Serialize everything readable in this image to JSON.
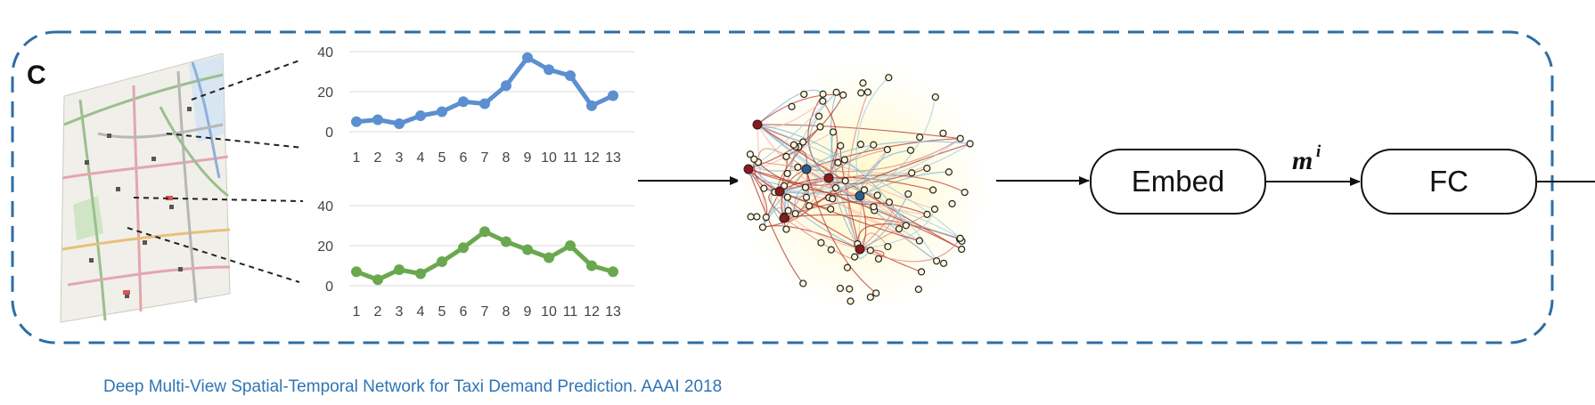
{
  "panel_label": "C",
  "boxes": {
    "embed": "Embed",
    "fc": "FC"
  },
  "edge_label": {
    "base": "m",
    "sup": "i"
  },
  "caption": "Deep Multi-View Spatial-Temporal Network for Taxi Demand Prediction.  AAAI 2018",
  "colors": {
    "border": "#2e6da4",
    "blue_series": "#5b8fd0",
    "green_series": "#6aa84f",
    "caption": "#2e75b6"
  },
  "icons": [
    "city-map-icon",
    "graph-network-icon"
  ],
  "chart_data": [
    {
      "type": "line",
      "categories": [
        "1",
        "2",
        "3",
        "4",
        "5",
        "6",
        "7",
        "8",
        "9",
        "10",
        "11",
        "12",
        "13"
      ],
      "values": [
        5,
        6,
        4,
        8,
        10,
        15,
        14,
        23,
        37,
        31,
        28,
        13,
        18
      ],
      "yticks": [
        "0",
        "20",
        "40"
      ],
      "ylim": [
        0,
        40
      ],
      "color": "#5b8fd0"
    },
    {
      "type": "line",
      "categories": [
        "1",
        "2",
        "3",
        "4",
        "5",
        "6",
        "7",
        "8",
        "9",
        "10",
        "11",
        "12",
        "13"
      ],
      "values": [
        7,
        3,
        8,
        6,
        12,
        19,
        27,
        22,
        18,
        14,
        20,
        10,
        7
      ],
      "yticks": [
        "0",
        "20",
        "40"
      ],
      "ylim": [
        0,
        40
      ],
      "color": "#6aa84f"
    }
  ]
}
